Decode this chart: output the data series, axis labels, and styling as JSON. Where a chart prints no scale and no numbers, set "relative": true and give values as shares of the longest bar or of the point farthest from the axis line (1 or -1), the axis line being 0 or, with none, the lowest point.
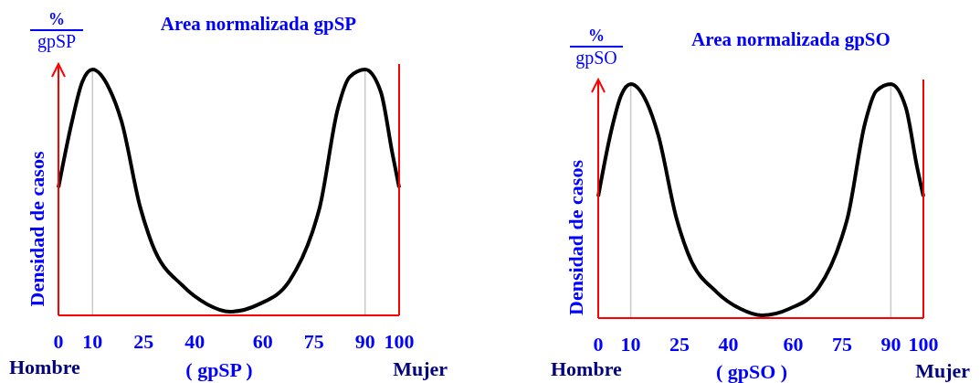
{
  "chart_data": [
    {
      "type": "line",
      "relative": true,
      "title": "Area normalizada gpSP",
      "xlabel": "( gpSP )",
      "ylabel": "Densidad de casos",
      "annotations": [
        "%",
        "gpSP",
        "Hombre",
        "Mujer"
      ],
      "xlim": [
        0,
        100
      ],
      "xticks": [
        0,
        10,
        25,
        40,
        60,
        75,
        90,
        100
      ],
      "ref_lines": [
        {
          "axis": "x",
          "value": 10,
          "color": "#c8c8c8"
        },
        {
          "axis": "x",
          "value": 90,
          "color": "#c8c8c8"
        }
      ],
      "x": [
        0,
        4,
        7,
        10,
        15,
        18.5,
        24,
        27.5,
        36.5,
        43.7,
        50.3,
        58.8,
        67.8,
        74.8,
        76.7,
        82,
        85.5,
        90,
        94.6,
        98,
        100
      ],
      "series": [
        {
          "color": "#000000",
          "values": [
            0.52,
            0.79,
            0.95,
            1.0,
            0.92,
            0.79,
            0.44,
            0.29,
            0.12,
            0.045,
            0.015,
            0.045,
            0.14,
            0.35,
            0.44,
            0.84,
            0.97,
            1.0,
            0.91,
            0.66,
            0.52
          ]
        }
      ]
    },
    {
      "type": "line",
      "relative": true,
      "title": "Area normalizada gpSO",
      "xlabel": "( gpSO )",
      "ylabel": "Densidad de casos",
      "annotations": [
        "%",
        "gpSO",
        "Hombre",
        "Mujer"
      ],
      "xlim": [
        0,
        100
      ],
      "xticks": [
        0,
        10,
        25,
        40,
        60,
        75,
        90,
        100
      ],
      "ref_lines": [
        {
          "axis": "x",
          "value": 10,
          "color": "#c8c8c8"
        },
        {
          "axis": "x",
          "value": 90,
          "color": "#c8c8c8"
        }
      ],
      "x": [
        0,
        4,
        7,
        10,
        15,
        18.5,
        24,
        27.5,
        36.5,
        43.7,
        50.3,
        58.8,
        67.8,
        74.8,
        76.7,
        82,
        85.5,
        90,
        94.6,
        98,
        100
      ],
      "series": [
        {
          "color": "#000000",
          "values": [
            0.52,
            0.8,
            0.95,
            1.0,
            0.92,
            0.78,
            0.43,
            0.28,
            0.11,
            0.04,
            0.012,
            0.04,
            0.13,
            0.34,
            0.43,
            0.83,
            0.97,
            1.0,
            0.9,
            0.65,
            0.52
          ]
        }
      ]
    }
  ]
}
